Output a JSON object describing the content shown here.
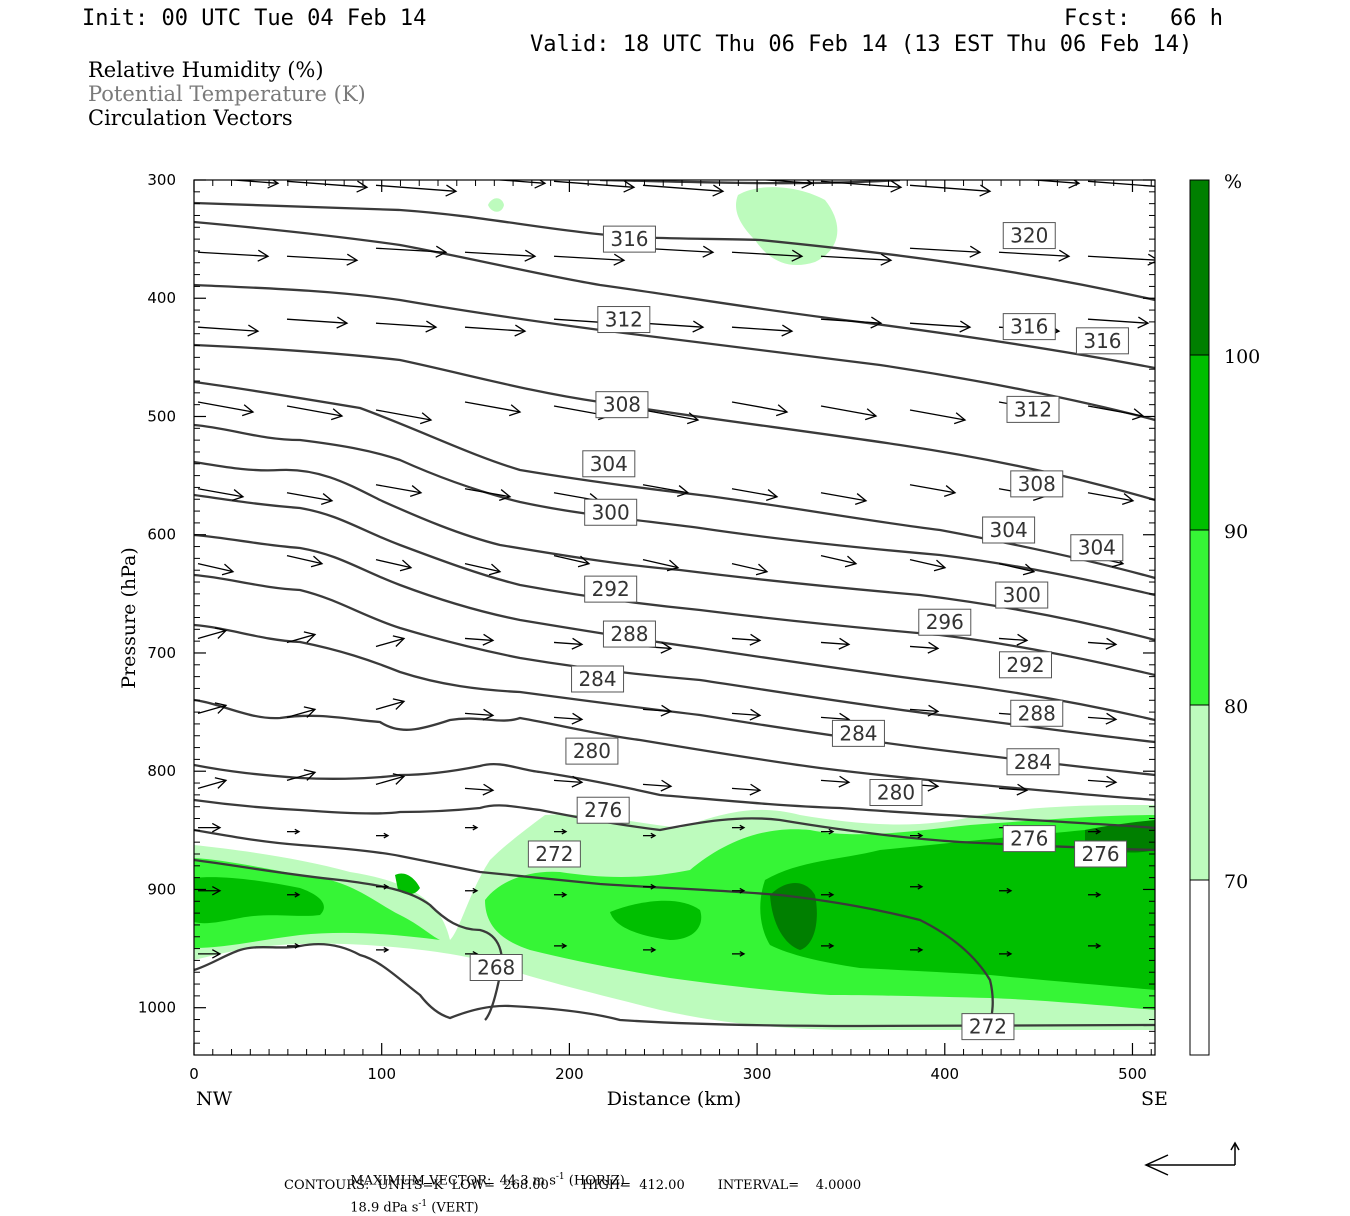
{
  "header": {
    "init": "Init: 00 UTC Tue 04 Feb 14",
    "fcst": "Fcst:   66 h",
    "valid": "Valid: 18 UTC Thu 06 Feb 14 (13 EST Thu 06 Feb 14)"
  },
  "legend_text": {
    "rh": "Relative Humidity (%)",
    "theta": "Potential Temperature (K)",
    "circ": "Circulation Vectors"
  },
  "footer": {
    "max_vector": "MAXIMUM VECTOR:  44.3 m s",
    "horiz": " (HORIZ)",
    "vert_val": "18.9 dPa s",
    "vert": " (VERT)",
    "contours": "CONTOURS:  UNITS=K  LOW=  268.00        HIGH=  412.00        INTERVAL=    4.0000"
  },
  "colors": {
    "c70": "#bdfbbd",
    "c80": "#36f536",
    "c90": "#00bf00",
    "c100": "#007f00",
    "contour": "#3a3a3a"
  },
  "chart_data": {
    "type": "cross-section",
    "xlabel": "Distance (km)",
    "ylabel": "Pressure (hPa)",
    "xlim": [
      0,
      512
    ],
    "ylim": [
      1040,
      300
    ],
    "x_ticks": [
      0,
      100,
      200,
      300,
      400,
      500
    ],
    "y_ticks": [
      300,
      400,
      500,
      600,
      700,
      800,
      900,
      1000
    ],
    "left_end_label": "NW",
    "right_end_label": "SE",
    "colorbar": {
      "unit": "%",
      "levels": [
        70,
        80,
        90,
        100
      ],
      "colors": [
        "#ffffff",
        "#bdfbbd",
        "#36f536",
        "#00bf00",
        "#007f00"
      ]
    },
    "contour_labels": [
      {
        "value": "320",
        "x": 445,
        "p": 347
      },
      {
        "value": "316",
        "x": 232,
        "p": 350
      },
      {
        "value": "316",
        "x": 445,
        "p": 424
      },
      {
        "value": "316",
        "x": 484,
        "p": 436
      },
      {
        "value": "312",
        "x": 229,
        "p": 418
      },
      {
        "value": "312",
        "x": 447,
        "p": 494
      },
      {
        "value": "308",
        "x": 228,
        "p": 490
      },
      {
        "value": "308",
        "x": 449,
        "p": 557
      },
      {
        "value": "304",
        "x": 221,
        "p": 540
      },
      {
        "value": "304",
        "x": 434,
        "p": 596
      },
      {
        "value": "304",
        "x": 481,
        "p": 611
      },
      {
        "value": "300",
        "x": 222,
        "p": 581
      },
      {
        "value": "300",
        "x": 441,
        "p": 651
      },
      {
        "value": "296",
        "x": 400,
        "p": 674
      },
      {
        "value": "292",
        "x": 222,
        "p": 646
      },
      {
        "value": "292",
        "x": 443,
        "p": 710
      },
      {
        "value": "288",
        "x": 232,
        "p": 684
      },
      {
        "value": "288",
        "x": 449,
        "p": 751
      },
      {
        "value": "284",
        "x": 215,
        "p": 722
      },
      {
        "value": "284",
        "x": 354,
        "p": 768
      },
      {
        "value": "284",
        "x": 447,
        "p": 792
      },
      {
        "value": "280",
        "x": 212,
        "p": 783
      },
      {
        "value": "280",
        "x": 374,
        "p": 818
      },
      {
        "value": "276",
        "x": 218,
        "p": 833
      },
      {
        "value": "276",
        "x": 445,
        "p": 857
      },
      {
        "value": "276",
        "x": 483,
        "p": 870
      },
      {
        "value": "272",
        "x": 192,
        "p": 870
      },
      {
        "value": "272",
        "x": 423,
        "p": 1016
      },
      {
        "value": "268",
        "x": 161,
        "p": 966
      }
    ]
  }
}
